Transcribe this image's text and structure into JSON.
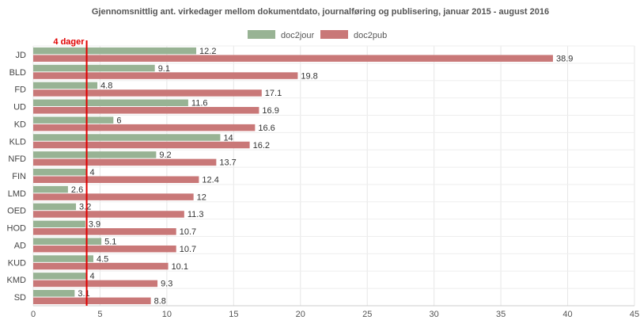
{
  "chart_data": {
    "type": "bar",
    "orientation": "horizontal",
    "title": "Gjennomsnittlig ant. virkedager mellom dokumentdato, journalføring og publisering, januar 2015 - august 2016",
    "categories": [
      "JD",
      "BLD",
      "FD",
      "UD",
      "KD",
      "KLD",
      "NFD",
      "FIN",
      "LMD",
      "OED",
      "HOD",
      "AD",
      "KUD",
      "KMD",
      "SD"
    ],
    "series": [
      {
        "name": "doc2jour",
        "color": "#98b394",
        "values": [
          12.2,
          9.1,
          4.8,
          11.6,
          6,
          14,
          9.2,
          4,
          2.6,
          3.2,
          3.9,
          5.1,
          4.5,
          4,
          3.1
        ]
      },
      {
        "name": "doc2pub",
        "color": "#c97878",
        "values": [
          38.9,
          19.8,
          17.1,
          16.9,
          16.6,
          16.2,
          13.7,
          12.4,
          12,
          11.3,
          10.7,
          10.7,
          10.1,
          9.3,
          8.8
        ]
      }
    ],
    "xlim": [
      0,
      45
    ],
    "xticks": [
      0,
      5,
      10,
      15,
      20,
      25,
      30,
      35,
      40,
      45
    ],
    "grid": true,
    "legend_position": "top-center",
    "reference_line": {
      "value": 4,
      "label": "4 dager",
      "color": "#e00000"
    }
  }
}
